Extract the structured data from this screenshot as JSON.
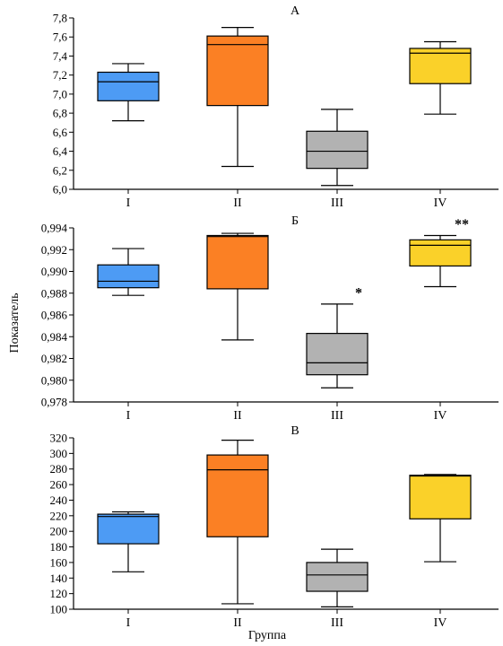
{
  "figure": {
    "ylabel": "Показатель",
    "xlabel": "Группа"
  },
  "chart_data": [
    {
      "type": "box",
      "title": "А",
      "categories": [
        "I",
        "II",
        "III",
        "IV"
      ],
      "ylim": [
        6.0,
        7.8
      ],
      "yticks": [
        "6,0",
        "6,2",
        "6,4",
        "6,6",
        "6,8",
        "7,0",
        "7,2",
        "7,4",
        "7,6",
        "7,8"
      ],
      "ytick_values": [
        6.0,
        6.2,
        6.4,
        6.6,
        6.8,
        7.0,
        7.2,
        7.4,
        7.6,
        7.8
      ],
      "boxes": [
        {
          "min": 6.72,
          "q1": 6.93,
          "median": 7.13,
          "q3": 7.23,
          "max": 7.32,
          "color": "#4d9bf4"
        },
        {
          "min": 6.24,
          "q1": 6.88,
          "median": 7.52,
          "q3": 7.61,
          "max": 7.7,
          "color": "#fb8024"
        },
        {
          "min": 6.04,
          "q1": 6.22,
          "median": 6.4,
          "q3": 6.61,
          "max": 6.84,
          "color": "#b2b2b2"
        },
        {
          "min": 6.79,
          "q1": 7.11,
          "median": 7.43,
          "q3": 7.48,
          "max": 7.55,
          "color": "#fad129"
        }
      ],
      "annotations": []
    },
    {
      "type": "box",
      "title": "Б",
      "categories": [
        "I",
        "II",
        "III",
        "IV"
      ],
      "ylim": [
        0.978,
        0.994
      ],
      "yticks": [
        "0,978",
        "0,980",
        "0,982",
        "0,984",
        "0,986",
        "0,988",
        "0,990",
        "0,992",
        "0,994"
      ],
      "ytick_values": [
        0.978,
        0.98,
        0.982,
        0.984,
        0.986,
        0.988,
        0.99,
        0.992,
        0.994
      ],
      "boxes": [
        {
          "min": 0.9878,
          "q1": 0.9885,
          "median": 0.9891,
          "q3": 0.9906,
          "max": 0.9921,
          "color": "#4d9bf4"
        },
        {
          "min": 0.9837,
          "q1": 0.9884,
          "median": 0.9932,
          "q3": 0.9933,
          "max": 0.9935,
          "color": "#fb8024"
        },
        {
          "min": 0.9793,
          "q1": 0.9805,
          "median": 0.9816,
          "q3": 0.9843,
          "max": 0.987,
          "color": "#b2b2b2"
        },
        {
          "min": 0.9886,
          "q1": 0.9905,
          "median": 0.9924,
          "q3": 0.9929,
          "max": 0.9933,
          "color": "#fad129"
        }
      ],
      "annotations": [
        {
          "category": "III",
          "text": "*",
          "y": 0.9876
        },
        {
          "category": "IV",
          "text": "**",
          "y": 0.9939
        }
      ]
    },
    {
      "type": "box",
      "title": "В",
      "categories": [
        "I",
        "II",
        "III",
        "IV"
      ],
      "ylim": [
        100,
        320
      ],
      "yticks": [
        "100",
        "120",
        "140",
        "160",
        "180",
        "200",
        "220",
        "240",
        "260",
        "280",
        "300",
        "320"
      ],
      "ytick_values": [
        100,
        120,
        140,
        160,
        180,
        200,
        220,
        240,
        260,
        280,
        300,
        320
      ],
      "boxes": [
        {
          "min": 148,
          "q1": 184,
          "median": 219,
          "q3": 222,
          "max": 225,
          "color": "#4d9bf4"
        },
        {
          "min": 107,
          "q1": 193,
          "median": 279,
          "q3": 298,
          "max": 317,
          "color": "#fb8024"
        },
        {
          "min": 103,
          "q1": 123,
          "median": 144,
          "q3": 160,
          "max": 177,
          "color": "#b2b2b2"
        },
        {
          "min": 161,
          "q1": 216,
          "median": 271,
          "q3": 272,
          "max": 273,
          "color": "#fad129"
        }
      ],
      "annotations": []
    }
  ]
}
